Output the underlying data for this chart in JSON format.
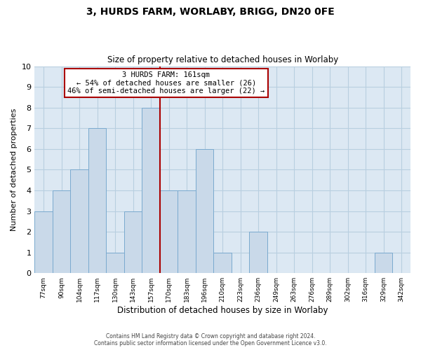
{
  "title": "3, HURDS FARM, WORLABY, BRIGG, DN20 0FE",
  "subtitle": "Size of property relative to detached houses in Worlaby",
  "xlabel": "Distribution of detached houses by size in Worlaby",
  "ylabel": "Number of detached properties",
  "bin_labels": [
    "77sqm",
    "90sqm",
    "104sqm",
    "117sqm",
    "130sqm",
    "143sqm",
    "157sqm",
    "170sqm",
    "183sqm",
    "196sqm",
    "210sqm",
    "223sqm",
    "236sqm",
    "249sqm",
    "263sqm",
    "276sqm",
    "289sqm",
    "302sqm",
    "316sqm",
    "329sqm",
    "342sqm"
  ],
  "bar_heights": [
    3,
    4,
    5,
    7,
    1,
    3,
    8,
    4,
    4,
    6,
    1,
    0,
    2,
    0,
    0,
    0,
    0,
    0,
    0,
    1,
    0
  ],
  "bar_color": "#c9d9e9",
  "bar_edge_color": "#7aaacf",
  "grid_color": "#b8cfe0",
  "vline_x": 7.0,
  "vline_color": "#aa0000",
  "annotation_title": "3 HURDS FARM: 161sqm",
  "annotation_line1": "← 54% of detached houses are smaller (26)",
  "annotation_line2": "46% of semi-detached houses are larger (22) →",
  "annotation_box_color": "#ffffff",
  "annotation_box_edge_color": "#aa0000",
  "ylim": [
    0,
    10
  ],
  "yticks": [
    0,
    1,
    2,
    3,
    4,
    5,
    6,
    7,
    8,
    9,
    10
  ],
  "footer_line1": "Contains HM Land Registry data © Crown copyright and database right 2024.",
  "footer_line2": "Contains public sector information licensed under the Open Government Licence v3.0.",
  "background_color": "#dce8f3",
  "fig_background_color": "#ffffff"
}
